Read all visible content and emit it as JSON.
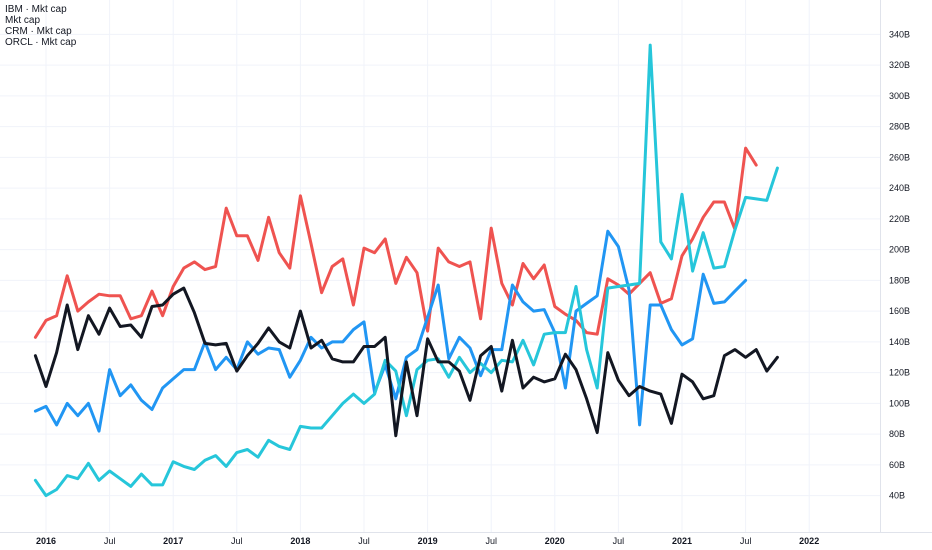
{
  "chart_data": {
    "type": "line",
    "legend_position": "top-left",
    "legend": [
      "IBM · Mkt cap",
      "Mkt cap",
      "CRM · Mkt cap",
      "ORCL · Mkt cap"
    ],
    "x_axis": {
      "unit": "month",
      "start": "2015-12",
      "end": "2022-06",
      "ticks": [
        {
          "label": "2016",
          "date": "2016-01",
          "bold": true
        },
        {
          "label": "Jul",
          "date": "2016-07",
          "bold": false
        },
        {
          "label": "2017",
          "date": "2017-01",
          "bold": true
        },
        {
          "label": "Jul",
          "date": "2017-07",
          "bold": false
        },
        {
          "label": "2018",
          "date": "2018-01",
          "bold": true
        },
        {
          "label": "Jul",
          "date": "2018-07",
          "bold": false
        },
        {
          "label": "2019",
          "date": "2019-01",
          "bold": true
        },
        {
          "label": "Jul",
          "date": "2019-07",
          "bold": false
        },
        {
          "label": "2020",
          "date": "2020-01",
          "bold": true
        },
        {
          "label": "Jul",
          "date": "2020-07",
          "bold": false
        },
        {
          "label": "2021",
          "date": "2021-01",
          "bold": true
        },
        {
          "label": "Jul",
          "date": "2021-07",
          "bold": false
        },
        {
          "label": "2022",
          "date": "2022-01",
          "bold": true
        }
      ]
    },
    "y_axis": {
      "position": "right",
      "unit": "B",
      "min": 30,
      "max": 350,
      "ticks": [
        {
          "label": "40B",
          "value": 40
        },
        {
          "label": "60B",
          "value": 60
        },
        {
          "label": "80B",
          "value": 80
        },
        {
          "label": "100B",
          "value": 100
        },
        {
          "label": "120B",
          "value": 120
        },
        {
          "label": "140B",
          "value": 140
        },
        {
          "label": "160B",
          "value": 160
        },
        {
          "label": "180B",
          "value": 180
        },
        {
          "label": "200B",
          "value": 200
        },
        {
          "label": "220B",
          "value": 220
        },
        {
          "label": "240B",
          "value": 240
        },
        {
          "label": "260B",
          "value": 260
        },
        {
          "label": "280B",
          "value": 280
        },
        {
          "label": "300B",
          "value": 300
        },
        {
          "label": "320B",
          "value": 320
        },
        {
          "label": "340B",
          "value": 340
        }
      ]
    },
    "grid": true,
    "series": [
      {
        "color": "#ef5350",
        "start": "2015-12",
        "values": [
          143,
          154,
          157,
          183,
          160,
          166,
          171,
          170,
          170,
          155,
          157,
          173,
          157,
          176,
          188,
          192,
          187,
          189,
          227,
          209,
          209,
          193,
          221,
          198,
          188,
          235,
          204,
          172,
          189,
          194,
          164,
          201,
          198,
          207,
          178,
          195,
          185,
          147,
          201,
          192,
          189,
          192,
          155,
          214,
          178,
          164,
          191,
          181,
          190,
          163,
          158,
          154,
          146,
          145,
          181,
          177,
          171,
          178,
          185,
          165,
          168,
          196,
          207,
          221,
          231,
          231,
          213,
          266,
          255
        ]
      },
      {
        "color": "#2196f3",
        "start": "2015-12",
        "values": [
          95,
          98,
          86,
          100,
          92,
          100,
          82,
          122,
          105,
          112,
          102,
          96,
          110,
          116,
          122,
          122,
          140,
          122,
          130,
          122,
          140,
          132,
          136,
          135,
          117,
          128,
          143,
          136,
          140,
          140,
          148,
          153,
          107,
          125,
          103,
          130,
          135,
          156,
          177,
          129,
          143,
          136,
          118,
          135,
          135,
          177,
          166,
          160,
          161,
          146,
          110,
          160,
          165,
          170,
          212,
          202,
          174,
          86,
          164,
          164,
          148,
          138,
          142,
          184,
          165,
          166,
          173,
          180
        ]
      },
      {
        "color": "#26c6da",
        "start": "2015-12",
        "values": [
          50,
          40,
          44,
          53,
          51,
          61,
          50,
          56,
          51,
          46,
          54,
          47,
          47,
          62,
          59,
          57,
          63,
          66,
          59,
          68,
          70,
          65,
          76,
          72,
          70,
          85,
          84,
          84,
          92,
          100,
          106,
          100,
          106,
          128,
          121,
          92,
          122,
          128,
          129,
          117,
          130,
          120,
          126,
          120,
          128,
          127,
          141,
          125,
          145,
          146,
          146,
          176,
          135,
          110,
          175,
          176,
          177,
          178,
          333,
          205,
          194,
          236,
          186,
          211,
          188,
          189,
          213,
          234,
          233,
          232,
          253
        ]
      },
      {
        "color": "#131722",
        "start": "2015-12",
        "values": [
          131,
          111,
          133,
          164,
          135,
          157,
          145,
          162,
          150,
          151,
          143,
          163,
          164,
          171,
          175,
          159,
          139,
          138,
          139,
          121,
          131,
          139,
          149,
          140,
          136,
          160,
          136,
          141,
          129,
          127,
          127,
          137,
          137,
          143,
          79,
          127,
          92,
          142,
          127,
          127,
          121,
          102,
          131,
          137,
          108,
          141,
          110,
          117,
          114,
          116,
          132,
          122,
          103,
          81,
          133,
          115,
          105,
          111,
          108,
          106,
          87,
          119,
          114,
          103,
          105,
          131,
          135,
          130,
          135,
          121,
          130
        ]
      }
    ]
  }
}
